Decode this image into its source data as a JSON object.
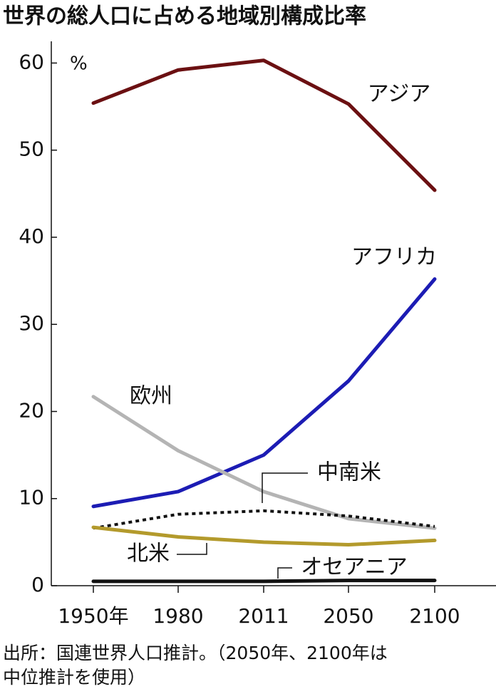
{
  "chart_data": {
    "type": "line",
    "title": "世界の総人口に占める地域別構成比率",
    "unit": "%",
    "categories": [
      "1950年",
      "1980",
      "2011",
      "2050",
      "2100"
    ],
    "series": [
      {
        "name": "アジア",
        "color": "#6b1012",
        "values": [
          55.4,
          59.2,
          60.3,
          55.3,
          45.4
        ]
      },
      {
        "name": "アフリカ",
        "color": "#1c1cb4",
        "values": [
          9.1,
          10.8,
          15.0,
          23.5,
          35.2
        ]
      },
      {
        "name": "欧州",
        "color": "#b4b4b4",
        "values": [
          21.7,
          15.5,
          10.8,
          7.7,
          6.6
        ]
      },
      {
        "name": "中南米",
        "color": "#111111",
        "dashed": true,
        "values": [
          6.6,
          8.2,
          8.6,
          8.0,
          6.8
        ]
      },
      {
        "name": "北米",
        "color": "#b39a2c",
        "values": [
          6.7,
          5.6,
          5.0,
          4.7,
          5.2
        ]
      },
      {
        "name": "オセアニア",
        "color": "#111111",
        "values": [
          0.5,
          0.5,
          0.5,
          0.6,
          0.6
        ]
      }
    ],
    "ylim": [
      0,
      62
    ],
    "yticks": [
      0,
      10,
      20,
      30,
      40,
      50,
      60
    ],
    "source": [
      "出所：国連世界人口推計。（2050年、2100年は",
      "中位推計を使用）"
    ]
  }
}
